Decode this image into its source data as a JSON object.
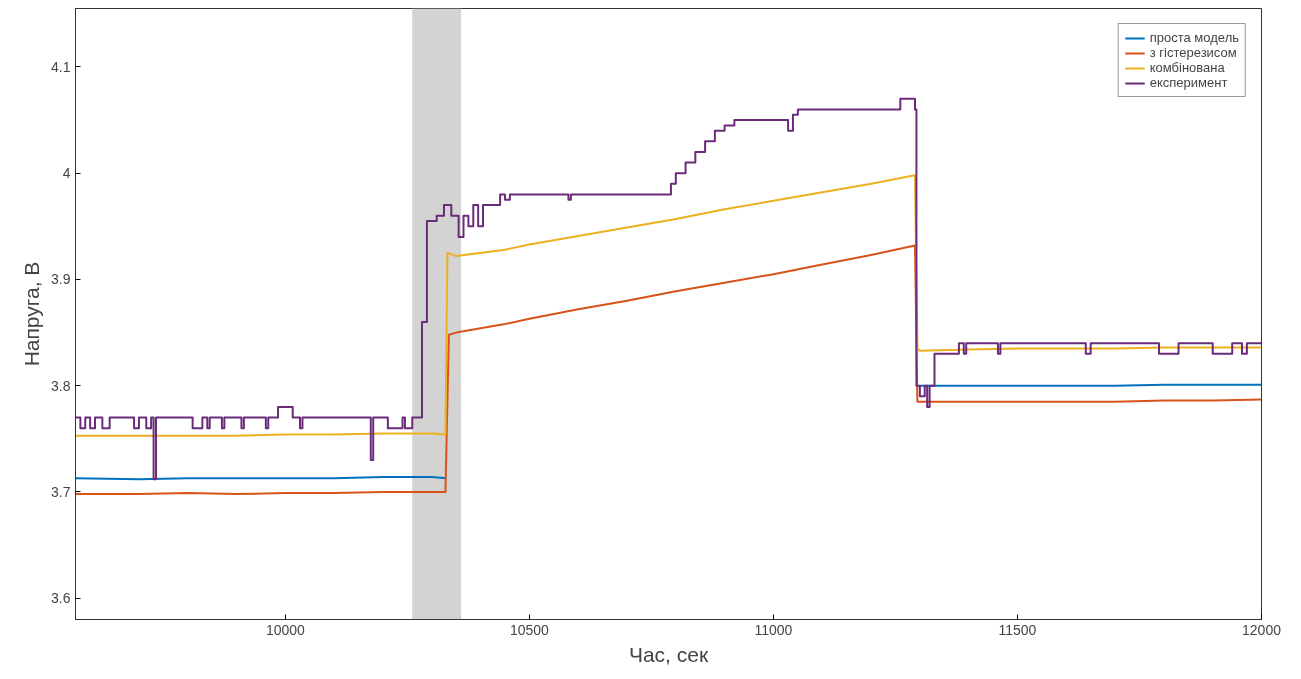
{
  "chart_data": {
    "type": "line",
    "xlabel": "Час, сек",
    "ylabel": "Напруга, В",
    "xlim": [
      9570,
      12000
    ],
    "ylim": [
      3.58,
      4.155
    ],
    "xticks": [
      10000,
      10500,
      11000,
      11500,
      12000
    ],
    "yticks": [
      3.6,
      3.7,
      3.8,
      3.9,
      4,
      4.1
    ],
    "grid": false,
    "legend": "top right",
    "line_style": "solid",
    "marker": "none",
    "bands": [
      {
        "axis": "x",
        "from": 10260,
        "to": 10360,
        "color": "#d3d3d3"
      }
    ],
    "series": [
      {
        "name": "проста модель",
        "color": "#0072bd",
        "x": [
          9570,
          9700,
          9800,
          9900,
          10000,
          10100,
          10200,
          10300,
          10330,
          10800,
          11300,
          11400,
          11500,
          11600,
          11700,
          11800,
          11900,
          12000
        ],
        "values": [
          3.713,
          3.712,
          3.713,
          3.713,
          3.713,
          3.713,
          3.714,
          3.714,
          3.713,
          null,
          3.8,
          3.8,
          3.8,
          3.8,
          3.8,
          3.801,
          3.801,
          3.801
        ]
      },
      {
        "name": "з гістерезисом",
        "color": "#d95319",
        "x": [
          9570,
          9700,
          9800,
          9900,
          10000,
          10100,
          10200,
          10300,
          10328,
          10335,
          10350,
          10450,
          10500,
          10600,
          10700,
          10800,
          10900,
          11000,
          11100,
          11200,
          11290,
          11295,
          11300,
          11400,
          11500,
          11600,
          11700,
          11800,
          11900,
          12000
        ],
        "values": [
          3.698,
          3.698,
          3.699,
          3.698,
          3.699,
          3.699,
          3.7,
          3.7,
          3.7,
          3.848,
          3.85,
          3.858,
          3.863,
          3.872,
          3.88,
          3.889,
          3.897,
          3.905,
          3.914,
          3.923,
          3.932,
          3.785,
          3.785,
          3.785,
          3.785,
          3.785,
          3.785,
          3.786,
          3.786,
          3.787
        ]
      },
      {
        "name": "комбінована",
        "color": "#edb120",
        "x": [
          9570,
          9700,
          9800,
          9900,
          10000,
          10100,
          10200,
          10300,
          10328,
          10332,
          10350,
          10450,
          10500,
          10600,
          10700,
          10800,
          10900,
          11000,
          11100,
          11200,
          11290,
          11295,
          11300,
          11400,
          11500,
          11600,
          11700,
          11800,
          11900,
          12000
        ],
        "values": [
          3.753,
          3.753,
          3.753,
          3.753,
          3.754,
          3.754,
          3.755,
          3.755,
          3.754,
          3.925,
          3.922,
          3.928,
          3.933,
          3.941,
          3.949,
          3.957,
          3.966,
          3.974,
          3.982,
          3.99,
          3.998,
          3.835,
          3.833,
          3.834,
          3.835,
          3.835,
          3.835,
          3.836,
          3.836,
          3.836
        ]
      },
      {
        "name": "експеримент",
        "color": "#6a2c7a",
        "type": "step",
        "x": [
          9570,
          9580,
          9590,
          9600,
          9610,
          9625,
          9640,
          9690,
          9700,
          9715,
          9725,
          9730,
          9735,
          9810,
          9830,
          9840,
          9845,
          9870,
          9875,
          9910,
          9915,
          9960,
          9965,
          9985,
          10015,
          10030,
          10035,
          10175,
          10180,
          10210,
          10240,
          10245,
          10260,
          10280,
          10290,
          10310,
          10325,
          10340,
          10355,
          10365,
          10375,
          10385,
          10395,
          10405,
          10440,
          10450,
          10460,
          10580,
          10585,
          10790,
          10800,
          10820,
          10840,
          10860,
          10880,
          10900,
          10920,
          11030,
          11040,
          11050,
          11260,
          11290,
          11293,
          11300,
          11310,
          11315,
          11320,
          11330,
          11380,
          11390,
          11395,
          11460,
          11465,
          11640,
          11650,
          11790,
          11830,
          11900,
          11940,
          11960,
          11970,
          12000
        ],
        "values": [
          3.77,
          3.76,
          3.77,
          3.76,
          3.77,
          3.76,
          3.77,
          3.76,
          3.77,
          3.76,
          3.77,
          3.712,
          3.77,
          3.76,
          3.77,
          3.76,
          3.77,
          3.76,
          3.77,
          3.76,
          3.77,
          3.76,
          3.77,
          3.78,
          3.77,
          3.76,
          3.77,
          3.73,
          3.77,
          3.76,
          3.77,
          3.76,
          3.77,
          3.86,
          3.955,
          3.96,
          3.97,
          3.96,
          3.94,
          3.96,
          3.95,
          3.97,
          3.95,
          3.97,
          3.98,
          3.975,
          3.98,
          3.975,
          3.98,
          3.99,
          4.0,
          4.01,
          4.02,
          4.03,
          4.04,
          4.045,
          4.05,
          4.04,
          4.055,
          4.06,
          4.07,
          4.06,
          3.8,
          3.79,
          3.8,
          3.78,
          3.8,
          3.83,
          3.84,
          3.83,
          3.84,
          3.83,
          3.84,
          3.83,
          3.84,
          3.83,
          3.84,
          3.83,
          3.84,
          3.83,
          3.84,
          3.84
        ]
      }
    ]
  }
}
